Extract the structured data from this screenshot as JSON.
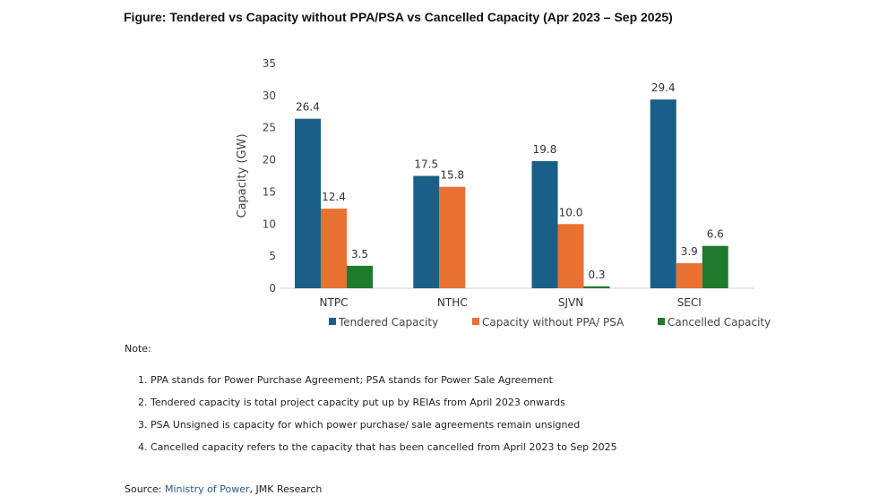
{
  "title": "Figure: Tendered vs Capacity without PPA/PSA vs Cancelled Capacity (Apr 2023 – Sep 2025)",
  "chart_data": {
    "type": "bar",
    "categories": [
      "NTPC",
      "NTHC",
      "SJVN",
      "SECI"
    ],
    "series": [
      {
        "name": "Tendered Capacity",
        "color": "#1a5f85",
        "values": [
          26.4,
          17.5,
          19.8,
          29.4
        ],
        "labels": [
          "26.4",
          "17.5",
          "19.8",
          "29.4"
        ]
      },
      {
        "name": "Capacity without PPA/ PSA",
        "color": "#e97132",
        "values": [
          12.4,
          15.8,
          10.0,
          3.9
        ],
        "labels": [
          "12.4",
          "15.8",
          "10.0",
          "3.9"
        ]
      },
      {
        "name": "Cancelled Capacity",
        "color": "#1f7a2e",
        "values": [
          3.5,
          null,
          0.3,
          6.6
        ],
        "labels": [
          "3.5",
          null,
          "0.3",
          "6.6"
        ]
      }
    ],
    "ylabel": "Capacity (GW)",
    "xlabel": "",
    "ylim": [
      0,
      35
    ],
    "yticks": [
      "0",
      "5",
      "10",
      "15",
      "20",
      "25",
      "30",
      "35"
    ],
    "grid": false,
    "legend": "bottom"
  },
  "notes": {
    "heading": "Note:",
    "items": [
      "1. PPA stands for Power Purchase Agreement; PSA stands for Power Sale Agreement",
      "2. Tendered capacity is total project capacity put up by REIAs from April 2023 onwards",
      "3. PSA Unsigned is capacity for which power purchase/ sale agreements remain unsigned",
      "4. Cancelled capacity refers to the capacity that has been cancelled from April 2023 to Sep 2025"
    ]
  },
  "source": {
    "label": "Source: ",
    "link": "Ministry of Power",
    "rest": ", JMK Research"
  }
}
